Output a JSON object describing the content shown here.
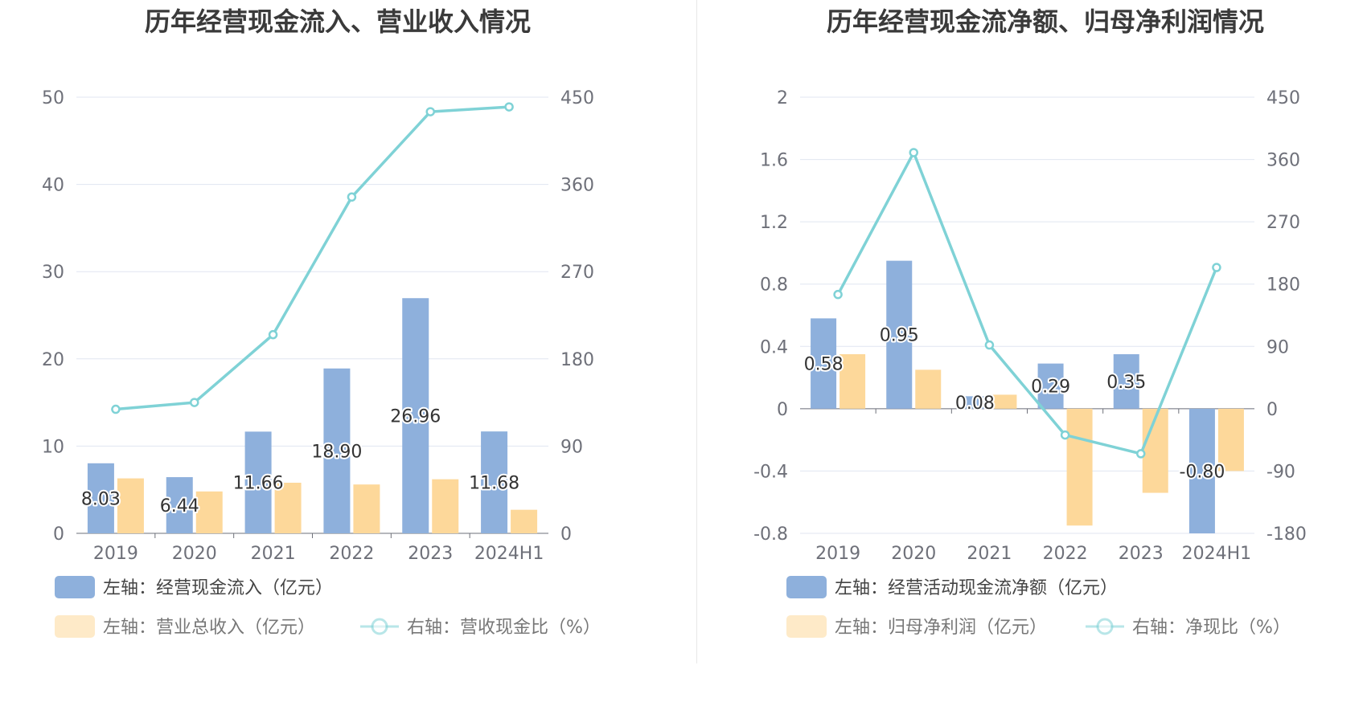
{
  "chart_data": [
    {
      "type": "bar",
      "title": "历年经营现金流入、营业收入情况",
      "categories": [
        "2019",
        "2020",
        "2021",
        "2022",
        "2023",
        "2024H1"
      ],
      "left_axis": {
        "ylim": [
          0,
          50
        ],
        "ticks": [
          "0",
          "10",
          "20",
          "30",
          "40",
          "50"
        ]
      },
      "right_axis": {
        "ylim": [
          0,
          450
        ],
        "ticks": [
          "0",
          "90",
          "180",
          "270",
          "360",
          "450"
        ]
      },
      "series": [
        {
          "name": "左轴：经营现金流入（亿元）",
          "kind": "bar",
          "axis": "left",
          "color": "#8eb0dc",
          "values": [
            8.03,
            6.44,
            11.66,
            18.9,
            26.96,
            11.68
          ],
          "labels": [
            "8.03",
            "6.44",
            "11.66",
            "18.90",
            "26.96",
            "11.68"
          ]
        },
        {
          "name": "左轴：营业总收入（亿元）",
          "kind": "bar",
          "axis": "left",
          "color": "#fdd89a",
          "values": [
            6.3,
            4.8,
            5.8,
            5.6,
            6.2,
            2.7
          ]
        },
        {
          "name": "右轴：营收现金比（%）",
          "kind": "line",
          "axis": "right",
          "color": "#7fd2d6",
          "values": [
            128,
            135,
            205,
            347,
            435,
            440
          ]
        }
      ]
    },
    {
      "type": "bar",
      "title": "历年经营现金流净额、归母净利润情况",
      "categories": [
        "2019",
        "2020",
        "2021",
        "2022",
        "2023",
        "2024H1"
      ],
      "left_axis": {
        "ylim": [
          -0.8,
          2
        ],
        "ticks": [
          "-0.8",
          "-0.4",
          "0",
          "0.4",
          "0.8",
          "1.2",
          "1.6",
          "2"
        ]
      },
      "right_axis": {
        "ylim": [
          -180,
          450
        ],
        "ticks": [
          "-180",
          "-90",
          "0",
          "90",
          "180",
          "270",
          "360",
          "450"
        ]
      },
      "series": [
        {
          "name": "左轴：经营活动现金流净额（亿元）",
          "kind": "bar",
          "axis": "left",
          "color": "#8eb0dc",
          "values": [
            0.58,
            0.95,
            0.08,
            0.29,
            0.35,
            -0.8
          ],
          "labels": [
            "0.58",
            "0.95",
            "0.08",
            "0.29",
            "0.35",
            "-0.80"
          ]
        },
        {
          "name": "左轴：归母净利润（亿元）",
          "kind": "bar",
          "axis": "left",
          "color": "#fdd89a",
          "values": [
            0.35,
            0.25,
            0.09,
            -0.75,
            -0.54,
            -0.4
          ]
        },
        {
          "name": "右轴：净现比（%）",
          "kind": "line",
          "axis": "right",
          "color": "#7fd2d6",
          "values": [
            165,
            370,
            92,
            -38,
            -65,
            204
          ]
        }
      ]
    }
  ]
}
